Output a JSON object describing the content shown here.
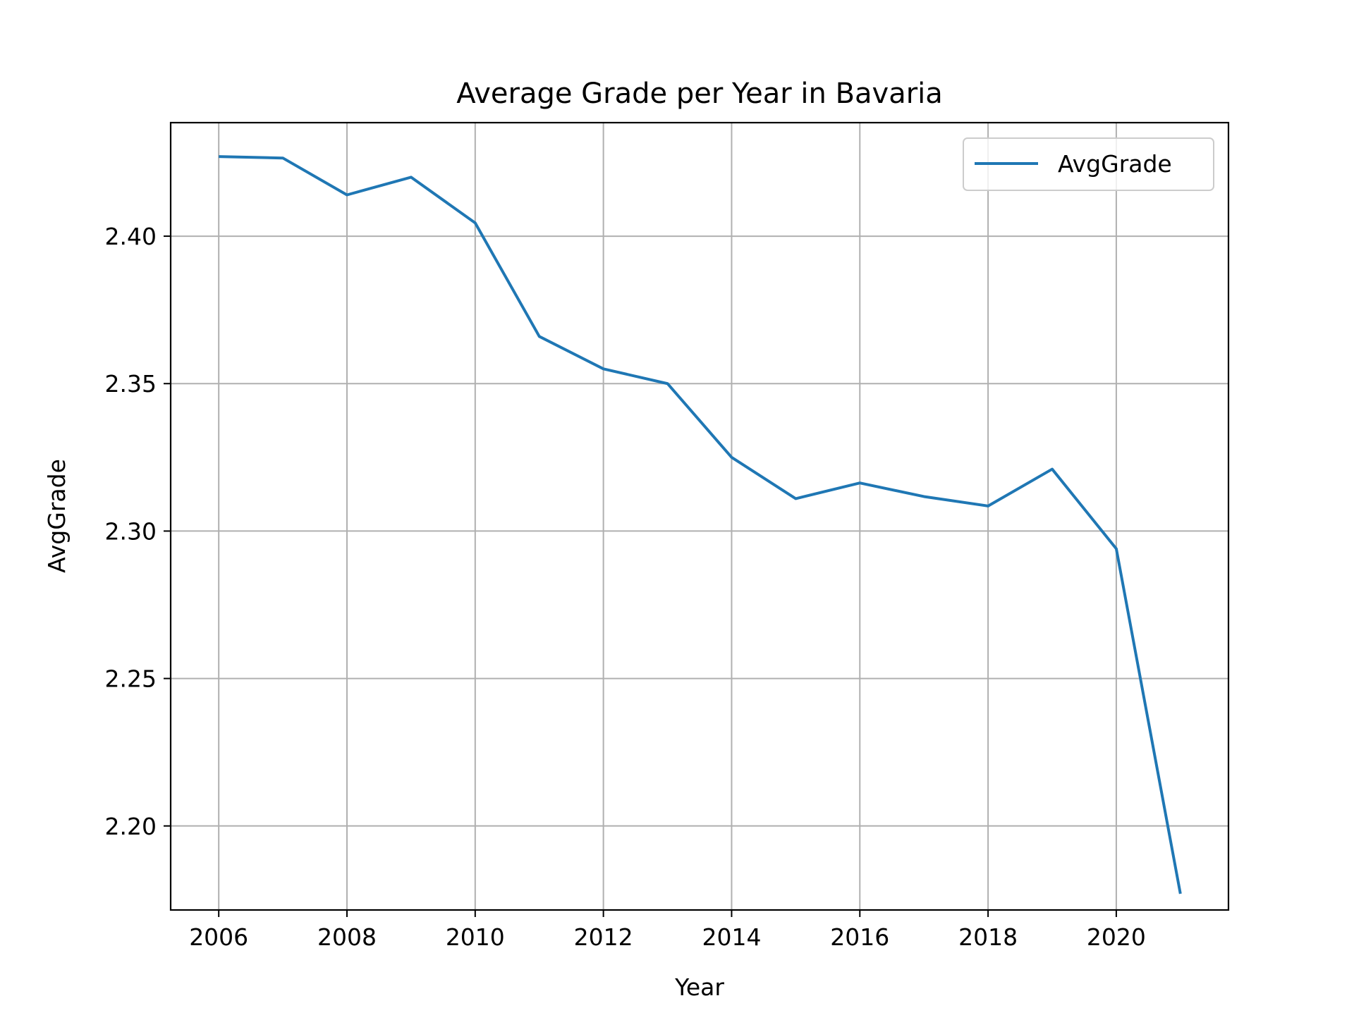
{
  "chart_data": {
    "type": "line",
    "title": "Average Grade per Year in Bavaria",
    "xlabel": "Year",
    "ylabel": "AvgGrade",
    "x": [
      2006,
      2007,
      2008,
      2009,
      2010,
      2011,
      2012,
      2013,
      2014,
      2015,
      2016,
      2017,
      2018,
      2019,
      2020,
      2021
    ],
    "series": [
      {
        "name": "AvgGrade",
        "color": "#1f77b4",
        "values": [
          2.427,
          2.4265,
          2.414,
          2.42,
          2.4045,
          2.366,
          2.355,
          2.35,
          2.325,
          2.311,
          2.3163,
          2.3117,
          2.3085,
          2.321,
          2.294,
          2.177
        ]
      }
    ],
    "xlim": [
      2005.25,
      2021.75
    ],
    "ylim": [
      2.1715,
      2.4385
    ],
    "xticks": [
      "2006",
      "2008",
      "2010",
      "2012",
      "2014",
      "2016",
      "2018",
      "2020"
    ],
    "yticks": [
      "2.20",
      "2.25",
      "2.30",
      "2.35",
      "2.40"
    ],
    "grid": true,
    "legend_position": "top-right"
  }
}
